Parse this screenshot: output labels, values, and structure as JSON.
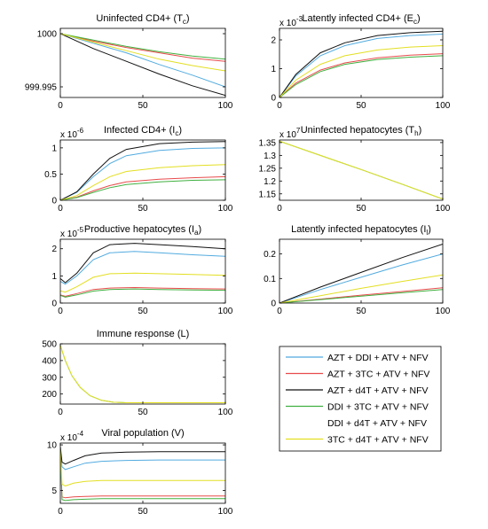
{
  "legend": {
    "entries": [
      {
        "label": "AZT + DDI + ATV + NFV",
        "color": "#52abdf"
      },
      {
        "label": "AZT + 3TC + ATV + NFV",
        "color": "#e84b4b"
      },
      {
        "label": "AZT + d4T + ATV + NFV",
        "color": "#111111"
      },
      {
        "label": "DDI + 3TC + ATV + NFV",
        "color": "#40b040"
      },
      {
        "label": "DDI + d4T + ATV + NFV",
        "color": "#ffffff"
      },
      {
        "label": "3TC + d4T + ATV + NFV",
        "color": "#e3df22"
      }
    ]
  },
  "chart_data": [
    {
      "type": "line",
      "title": "Uninfected CD4+ (Tc)",
      "title_main": "Uninfected CD4+ (T",
      "title_sub": "c",
      "title_end": ")",
      "axis_multiplier": "",
      "xlim": [
        0,
        100
      ],
      "ylim": [
        999.994,
        1000.0005
      ],
      "xticks": [
        "0",
        "50",
        "100"
      ],
      "yticks": [
        {
          "v": 1000,
          "label": "1000"
        },
        {
          "v": 999.995,
          "label": "999.995"
        }
      ],
      "series": [
        {
          "color": "#52abdf",
          "x": [
            0,
            20,
            40,
            60,
            80,
            100
          ],
          "y": [
            1000,
            999.9991,
            999.9982,
            999.9971,
            999.9961,
            999.995
          ]
        },
        {
          "color": "#e84b4b",
          "x": [
            0,
            20,
            40,
            60,
            80,
            100
          ],
          "y": [
            1000,
            999.9993,
            999.9987,
            999.9982,
            999.9977,
            999.9974
          ]
        },
        {
          "color": "#111111",
          "x": [
            0,
            20,
            40,
            60,
            80,
            100
          ],
          "y": [
            1000,
            999.9986,
            999.9974,
            999.9962,
            999.9951,
            999.9942
          ]
        },
        {
          "color": "#40b040",
          "x": [
            0,
            20,
            40,
            60,
            80,
            100
          ],
          "y": [
            1000,
            999.9994,
            999.9988,
            999.9983,
            999.9979,
            999.9976
          ]
        },
        {
          "color": "#e3df22",
          "x": [
            0,
            20,
            40,
            60,
            80,
            100
          ],
          "y": [
            1000,
            999.9992,
            999.9984,
            999.9976,
            999.997,
            999.9965
          ]
        }
      ]
    },
    {
      "type": "line",
      "title": "Latently infected CD4+ (Ec)",
      "title_main": "Latently infected CD4+ (E",
      "title_sub": "c",
      "title_end": ")",
      "axis_multiplier": "x 10",
      "axis_multiplier_exp": "-3",
      "xlim": [
        0,
        100
      ],
      "ylim": [
        0,
        2.4
      ],
      "xticks": [
        "0",
        "50",
        "100"
      ],
      "yticks": [
        {
          "v": 0,
          "label": "0"
        },
        {
          "v": 1,
          "label": "1"
        },
        {
          "v": 2,
          "label": "2"
        }
      ],
      "series": [
        {
          "color": "#52abdf",
          "x": [
            0,
            10,
            25,
            40,
            60,
            80,
            100
          ],
          "y": [
            0,
            0.75,
            1.45,
            1.8,
            2.05,
            2.15,
            2.2
          ]
        },
        {
          "color": "#e84b4b",
          "x": [
            0,
            10,
            25,
            40,
            60,
            80,
            100
          ],
          "y": [
            0,
            0.5,
            0.95,
            1.2,
            1.38,
            1.47,
            1.52
          ]
        },
        {
          "color": "#111111",
          "x": [
            0,
            10,
            25,
            40,
            60,
            80,
            100
          ],
          "y": [
            0,
            0.8,
            1.55,
            1.9,
            2.15,
            2.25,
            2.3
          ]
        },
        {
          "color": "#40b040",
          "x": [
            0,
            10,
            25,
            40,
            60,
            80,
            100
          ],
          "y": [
            0,
            0.45,
            0.9,
            1.15,
            1.32,
            1.4,
            1.45
          ]
        },
        {
          "color": "#e3df22",
          "x": [
            0,
            10,
            25,
            40,
            60,
            80,
            100
          ],
          "y": [
            0,
            0.6,
            1.15,
            1.45,
            1.65,
            1.75,
            1.8
          ]
        }
      ]
    },
    {
      "type": "line",
      "title": "Infected CD4+ (Ic)",
      "title_main": "Infected CD4+ (I",
      "title_sub": "c",
      "title_end": ")",
      "axis_multiplier": "x 10",
      "axis_multiplier_exp": "-6",
      "xlim": [
        0,
        100
      ],
      "ylim": [
        0,
        1.15
      ],
      "xticks": [
        "0",
        "50",
        "100"
      ],
      "yticks": [
        {
          "v": 0,
          "label": "0"
        },
        {
          "v": 0.5,
          "label": "0.5"
        },
        {
          "v": 1,
          "label": "1"
        }
      ],
      "series": [
        {
          "color": "#52abdf",
          "x": [
            0,
            10,
            20,
            30,
            40,
            60,
            80,
            100
          ],
          "y": [
            0,
            0.15,
            0.45,
            0.7,
            0.85,
            0.95,
            0.99,
            1.0
          ]
        },
        {
          "color": "#e84b4b",
          "x": [
            0,
            10,
            20,
            30,
            40,
            60,
            80,
            100
          ],
          "y": [
            0,
            0.06,
            0.18,
            0.28,
            0.35,
            0.4,
            0.43,
            0.45
          ]
        },
        {
          "color": "#111111",
          "x": [
            0,
            10,
            20,
            30,
            40,
            60,
            80,
            100
          ],
          "y": [
            0,
            0.16,
            0.5,
            0.8,
            0.97,
            1.08,
            1.11,
            1.12
          ]
        },
        {
          "color": "#40b040",
          "x": [
            0,
            10,
            20,
            30,
            40,
            60,
            80,
            100
          ],
          "y": [
            0,
            0.05,
            0.15,
            0.24,
            0.3,
            0.35,
            0.38,
            0.39
          ]
        },
        {
          "color": "#e3df22",
          "x": [
            0,
            10,
            20,
            30,
            40,
            60,
            80,
            100
          ],
          "y": [
            0,
            0.09,
            0.28,
            0.45,
            0.55,
            0.62,
            0.66,
            0.68
          ]
        }
      ]
    },
    {
      "type": "line",
      "title": "Uninfected hepatocytes (Th)",
      "title_main": "Uninfected hepatocytes (T",
      "title_sub": "h",
      "title_end": ")",
      "axis_multiplier": "x 10",
      "axis_multiplier_exp": "7",
      "xlim": [
        0,
        100
      ],
      "ylim": [
        1.125,
        1.36
      ],
      "xticks": [
        "0",
        "50",
        "100"
      ],
      "yticks": [
        {
          "v": 1.15,
          "label": "1.15"
        },
        {
          "v": 1.2,
          "label": "1.2"
        },
        {
          "v": 1.25,
          "label": "1.25"
        },
        {
          "v": 1.3,
          "label": "1.3"
        },
        {
          "v": 1.35,
          "label": "1.35"
        }
      ],
      "series": [
        {
          "color": "#40b040",
          "x": [
            0,
            25,
            50,
            75,
            100
          ],
          "y": [
            1.355,
            1.3,
            1.245,
            1.188,
            1.13
          ]
        },
        {
          "color": "#e3df22",
          "x": [
            0,
            25,
            50,
            75,
            100
          ],
          "y": [
            1.355,
            1.3,
            1.245,
            1.188,
            1.13
          ]
        }
      ]
    },
    {
      "type": "line",
      "title": "Productive hepatocytes (Ia)",
      "title_main": "Productive hepatocytes (I",
      "title_sub": "a",
      "title_end": ")",
      "axis_multiplier": "x 10",
      "axis_multiplier_exp": "-5",
      "xlim": [
        0,
        100
      ],
      "ylim": [
        0,
        2.35
      ],
      "xticks": [
        "0",
        "50",
        "100"
      ],
      "yticks": [
        {
          "v": 0,
          "label": "0"
        },
        {
          "v": 1,
          "label": "1"
        },
        {
          "v": 2,
          "label": "2"
        }
      ],
      "series": [
        {
          "color": "#52abdf",
          "x": [
            0,
            3,
            10,
            20,
            30,
            45,
            60,
            80,
            100
          ],
          "y": [
            0.8,
            0.7,
            1.0,
            1.6,
            1.85,
            1.9,
            1.85,
            1.78,
            1.72
          ]
        },
        {
          "color": "#e84b4b",
          "x": [
            0,
            3,
            10,
            20,
            30,
            45,
            60,
            80,
            100
          ],
          "y": [
            0.3,
            0.25,
            0.35,
            0.5,
            0.55,
            0.57,
            0.55,
            0.53,
            0.52
          ]
        },
        {
          "color": "#111111",
          "x": [
            0,
            3,
            10,
            20,
            30,
            45,
            60,
            80,
            100
          ],
          "y": [
            0.9,
            0.75,
            1.1,
            1.85,
            2.15,
            2.2,
            2.15,
            2.08,
            2.0
          ]
        },
        {
          "color": "#40b040",
          "x": [
            0,
            3,
            10,
            20,
            30,
            45,
            60,
            80,
            100
          ],
          "y": [
            0.28,
            0.22,
            0.3,
            0.44,
            0.5,
            0.52,
            0.5,
            0.48,
            0.47
          ]
        },
        {
          "color": "#e3df22",
          "x": [
            0,
            3,
            10,
            20,
            30,
            45,
            60,
            80,
            100
          ],
          "y": [
            0.45,
            0.4,
            0.6,
            0.95,
            1.08,
            1.1,
            1.08,
            1.05,
            1.02
          ]
        }
      ]
    },
    {
      "type": "line",
      "title": "Latently infected hepatocytes (Il)",
      "title_main": "Latently infected hepatocytes (I",
      "title_sub": "l",
      "title_end": ")",
      "axis_multiplier": "",
      "xlim": [
        0,
        100
      ],
      "ylim": [
        0,
        0.26
      ],
      "xticks": [
        "0",
        "50",
        "100"
      ],
      "yticks": [
        {
          "v": 0,
          "label": "0"
        },
        {
          "v": 0.1,
          "label": "0.1"
        },
        {
          "v": 0.2,
          "label": "0.2"
        }
      ],
      "series": [
        {
          "color": "#52abdf",
          "x": [
            0,
            25,
            50,
            75,
            100
          ],
          "y": [
            0,
            0.055,
            0.105,
            0.155,
            0.2
          ]
        },
        {
          "color": "#e84b4b",
          "x": [
            0,
            25,
            50,
            75,
            100
          ],
          "y": [
            0,
            0.016,
            0.032,
            0.047,
            0.062
          ]
        },
        {
          "color": "#111111",
          "x": [
            0,
            25,
            50,
            75,
            100
          ],
          "y": [
            0,
            0.065,
            0.125,
            0.185,
            0.24
          ]
        },
        {
          "color": "#40b040",
          "x": [
            0,
            25,
            50,
            75,
            100
          ],
          "y": [
            0,
            0.014,
            0.028,
            0.042,
            0.055
          ]
        },
        {
          "color": "#e3df22",
          "x": [
            0,
            25,
            50,
            75,
            100
          ],
          "y": [
            0,
            0.03,
            0.06,
            0.088,
            0.115
          ]
        }
      ]
    },
    {
      "type": "line",
      "title": "Immune response (L)",
      "title_main": "Immune response (L)",
      "title_sub": "",
      "title_end": "",
      "axis_multiplier": "",
      "xlim": [
        0,
        100
      ],
      "ylim": [
        140,
        500
      ],
      "xticks": [
        "0",
        "50",
        "100"
      ],
      "yticks": [
        {
          "v": 200,
          "label": "200"
        },
        {
          "v": 300,
          "label": "300"
        },
        {
          "v": 400,
          "label": "400"
        },
        {
          "v": 500,
          "label": "500"
        }
      ],
      "series": [
        {
          "color": "#40b040",
          "x": [
            0,
            3,
            7,
            12,
            18,
            25,
            32,
            40,
            60,
            100
          ],
          "y": [
            490,
            400,
            310,
            240,
            190,
            162,
            151,
            148,
            148,
            148
          ]
        },
        {
          "color": "#e3df22",
          "x": [
            0,
            3,
            7,
            12,
            18,
            25,
            32,
            40,
            60,
            100
          ],
          "y": [
            490,
            400,
            310,
            240,
            190,
            162,
            151,
            148,
            148,
            148
          ]
        }
      ]
    },
    {
      "type": "line",
      "title": "Viral population (V)",
      "title_main": "Viral population (V)",
      "title_sub": "",
      "title_end": "",
      "axis_multiplier": "x 10",
      "axis_multiplier_exp": "-4",
      "xlim": [
        0,
        100
      ],
      "ylim": [
        3.6,
        10.2
      ],
      "xticks": [
        "0",
        "50",
        "100"
      ],
      "yticks": [
        {
          "v": 5,
          "label": "5"
        },
        {
          "v": 10,
          "label": "10"
        }
      ],
      "series": [
        {
          "color": "#52abdf",
          "x": [
            0,
            1,
            3,
            8,
            15,
            25,
            40,
            60,
            80,
            100
          ],
          "y": [
            9.5,
            7.6,
            7.3,
            7.6,
            8.0,
            8.2,
            8.3,
            8.35,
            8.35,
            8.35
          ]
        },
        {
          "color": "#e84b4b",
          "x": [
            0,
            1,
            3,
            8,
            15,
            25,
            40,
            60,
            80,
            100
          ],
          "y": [
            9.5,
            4.3,
            4.2,
            4.3,
            4.35,
            4.4,
            4.4,
            4.4,
            4.4,
            4.4
          ]
        },
        {
          "color": "#111111",
          "x": [
            0,
            1,
            3,
            8,
            15,
            25,
            40,
            60,
            80,
            100
          ],
          "y": [
            9.8,
            8.1,
            7.9,
            8.3,
            8.8,
            9.1,
            9.2,
            9.25,
            9.25,
            9.25
          ]
        },
        {
          "color": "#40b040",
          "x": [
            0,
            1,
            3,
            8,
            15,
            25,
            40,
            60,
            80,
            100
          ],
          "y": [
            9.5,
            4.0,
            3.9,
            4.0,
            4.05,
            4.1,
            4.1,
            4.1,
            4.1,
            4.1
          ]
        },
        {
          "color": "#e3df22",
          "x": [
            0,
            1,
            3,
            8,
            15,
            25,
            40,
            60,
            80,
            100
          ],
          "y": [
            9.5,
            5.7,
            5.5,
            5.8,
            6.0,
            6.1,
            6.1,
            6.1,
            6.1,
            6.1
          ]
        }
      ]
    }
  ]
}
